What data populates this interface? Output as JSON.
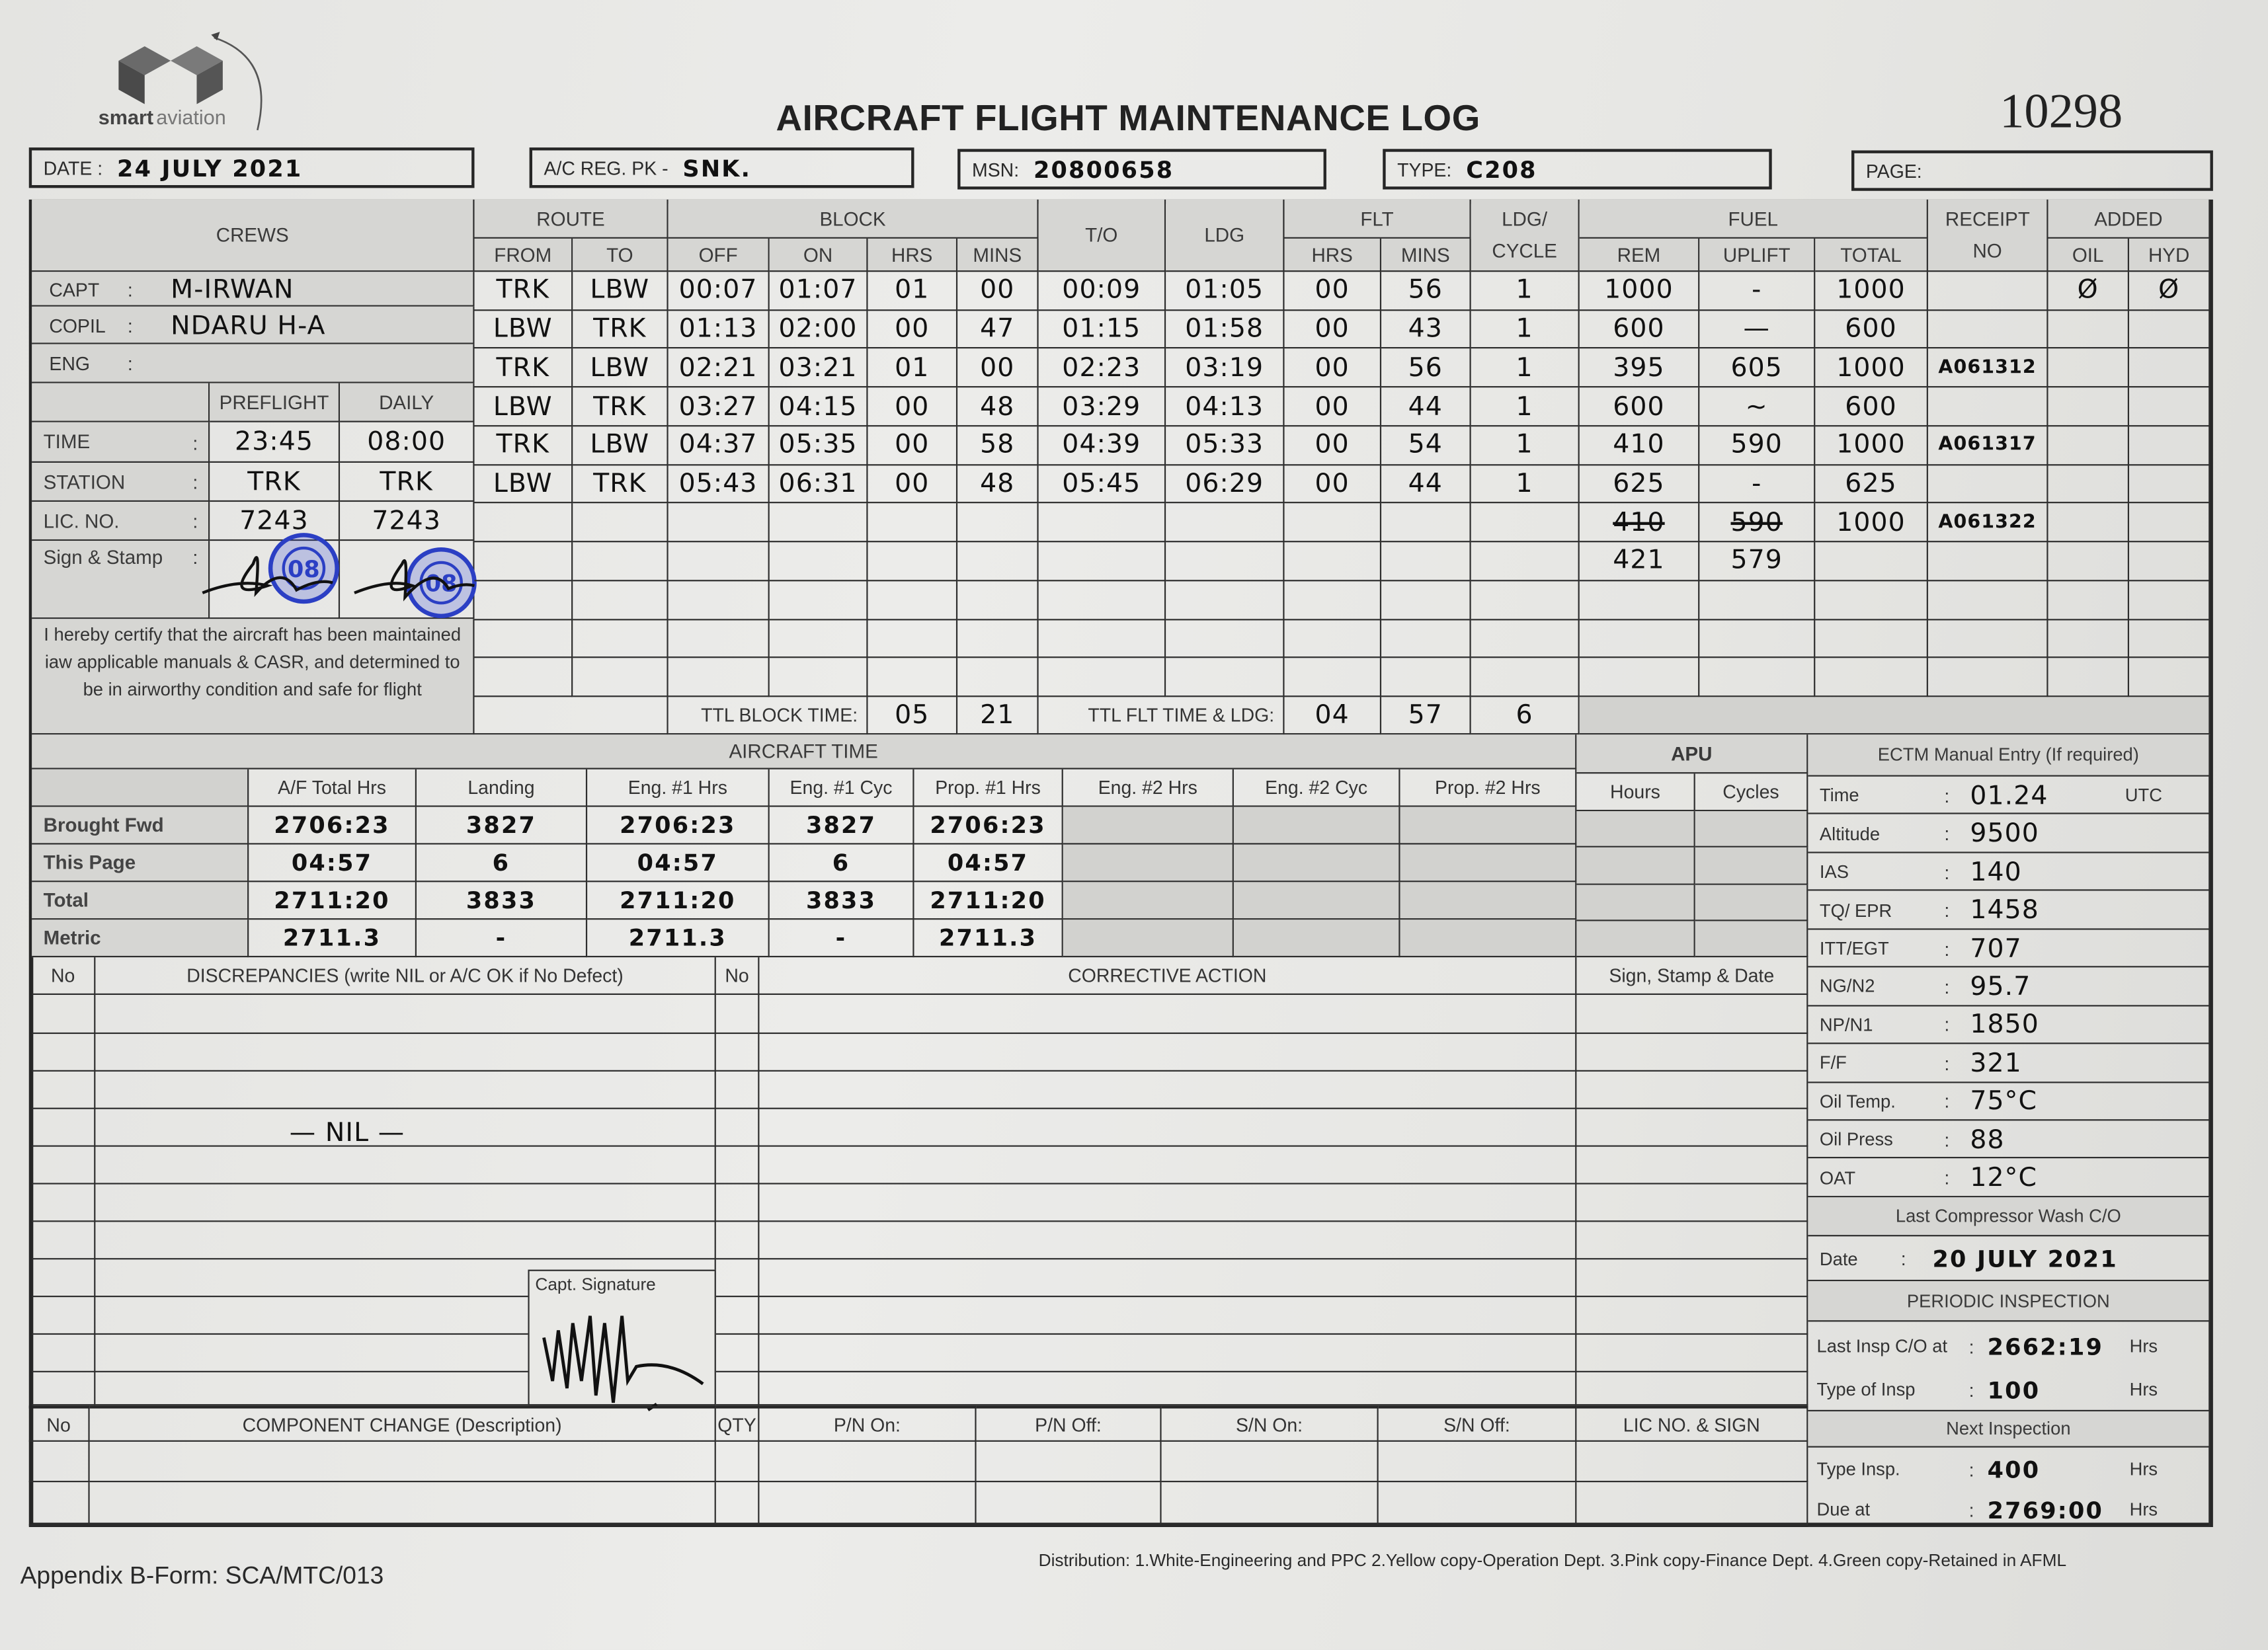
{
  "header": {
    "logo_text_a": "smart",
    "logo_text_b": "aviation",
    "title": "AIRCRAFT FLIGHT MAINTENANCE LOG",
    "log_number": "10298",
    "date_label": "DATE :",
    "date_value": "24 JULY 2021",
    "reg_label": "A/C REG. PK -",
    "reg_value": "SNK.",
    "msn_label": "MSN:",
    "msn_value": "20800658",
    "type_label": "TYPE:",
    "type_value": "C208",
    "page_label": "PAGE:",
    "page_value": ""
  },
  "crews": {
    "title": "CREWS",
    "members": [
      {
        "label": "CAPT",
        "colon": ":",
        "value": "M-IRWAN"
      },
      {
        "label": "COPIL",
        "colon": ":",
        "value": "NDARU   H-A"
      },
      {
        "label": "ENG",
        "colon": ":",
        "value": ""
      }
    ],
    "col_preflight": "PREFLIGHT",
    "col_daily": "DAILY",
    "checks": [
      {
        "label": "TIME",
        "colon": ":",
        "preflight": "23:45",
        "daily": "08:00"
      },
      {
        "label": "STATION",
        "colon": ":",
        "preflight": "TRK",
        "daily": "TRK"
      },
      {
        "label": "LIC. NO.",
        "colon": ":",
        "preflight": "7243",
        "daily": "7243"
      },
      {
        "label": "Sign & Stamp",
        "colon": ":",
        "preflight": "",
        "daily": ""
      }
    ],
    "stamp_text": "08",
    "certification": "I hereby certify that the aircraft has been maintained iaw applicable manuals & CASR, and determined to be in airworthy condition and safe for flight"
  },
  "flights": {
    "headers": {
      "route": "ROUTE",
      "from": "FROM",
      "to": "TO",
      "block": "BLOCK",
      "off": "OFF",
      "on": "ON",
      "hrs": "HRS",
      "mins": "MINS",
      "takeoff": "T/O",
      "ldg": "LDG",
      "flt": "FLT",
      "flt_hrs": "HRS",
      "flt_mins": "MINS",
      "ldg_cycle": "LDG/ CYCLE",
      "fuel": "FUEL",
      "rem": "REM",
      "uplift": "UPLIFT",
      "total": "TOTAL",
      "receipt": "RECEIPT NO",
      "added": "ADDED",
      "oil": "OIL",
      "hyd": "HYD"
    },
    "rows": [
      {
        "from": "TRK",
        "to": "LBW",
        "off": "00:07",
        "on": "01:07",
        "blk_hrs": "01",
        "blk_mins": "00",
        "to_time": "00:09",
        "ldg_time": "01:05",
        "flt_hrs": "00",
        "flt_mins": "56",
        "cycle": "1",
        "rem": "1000",
        "uplift": "-",
        "total": "1000",
        "receipt": "",
        "oil": "Ø",
        "hyd": "Ø"
      },
      {
        "from": "LBW",
        "to": "TRK",
        "off": "01:13",
        "on": "02:00",
        "blk_hrs": "00",
        "blk_mins": "47",
        "to_time": "01:15",
        "ldg_time": "01:58",
        "flt_hrs": "00",
        "flt_mins": "43",
        "cycle": "1",
        "rem": "600",
        "uplift": "—",
        "total": "600",
        "receipt": "",
        "oil": "",
        "hyd": ""
      },
      {
        "from": "TRK",
        "to": "LBW",
        "off": "02:21",
        "on": "03:21",
        "blk_hrs": "01",
        "blk_mins": "00",
        "to_time": "02:23",
        "ldg_time": "03:19",
        "flt_hrs": "00",
        "flt_mins": "56",
        "cycle": "1",
        "rem": "395",
        "uplift": "605",
        "total": "1000",
        "receipt": "A061312",
        "oil": "",
        "hyd": ""
      },
      {
        "from": "LBW",
        "to": "TRK",
        "off": "03:27",
        "on": "04:15",
        "blk_hrs": "00",
        "blk_mins": "48",
        "to_time": "03:29",
        "ldg_time": "04:13",
        "flt_hrs": "00",
        "flt_mins": "44",
        "cycle": "1",
        "rem": "600",
        "uplift": "~",
        "total": "600",
        "receipt": "",
        "oil": "",
        "hyd": ""
      },
      {
        "from": "TRK",
        "to": "LBW",
        "off": "04:37",
        "on": "05:35",
        "blk_hrs": "00",
        "blk_mins": "58",
        "to_time": "04:39",
        "ldg_time": "05:33",
        "flt_hrs": "00",
        "flt_mins": "54",
        "cycle": "1",
        "rem": "410",
        "uplift": "590",
        "total": "1000",
        "receipt": "A061317",
        "oil": "",
        "hyd": ""
      },
      {
        "from": "LBW",
        "to": "TRK",
        "off": "05:43",
        "on": "06:31",
        "blk_hrs": "00",
        "blk_mins": "48",
        "to_time": "05:45",
        "ldg_time": "06:29",
        "flt_hrs": "00",
        "flt_mins": "44",
        "cycle": "1",
        "rem": "625",
        "uplift": "-",
        "total": "625",
        "receipt": "",
        "oil": "",
        "hyd": ""
      },
      {
        "rem": "410",
        "uplift": "590",
        "total": "1000",
        "receipt": "A061322",
        "struck": [
          "rem",
          "uplift"
        ]
      },
      {
        "rem": "421",
        "uplift": "579"
      },
      {},
      {},
      {}
    ],
    "totals": {
      "ttl_block_label": "TTL BLOCK TIME:",
      "block_hrs": "05",
      "block_mins": "21",
      "ttl_flt_label": "TTL FLT TIME & LDG:",
      "flt_hrs": "04",
      "flt_mins": "57",
      "landings": "6"
    }
  },
  "aircraft_time": {
    "title": "AIRCRAFT TIME",
    "columns": [
      "A/F Total Hrs",
      "Landing",
      "Eng. #1 Hrs",
      "Eng. #1 Cyc",
      "Prop. #1 Hrs",
      "Eng. #2 Hrs",
      "Eng. #2 Cyc",
      "Prop. #2 Hrs"
    ],
    "rows": [
      {
        "label": "Brought Fwd",
        "values": [
          "2706:23",
          "3827",
          "2706:23",
          "3827",
          "2706:23",
          "",
          "",
          ""
        ]
      },
      {
        "label": "This Page",
        "values": [
          "04:57",
          "6",
          "04:57",
          "6",
          "04:57",
          "",
          "",
          ""
        ]
      },
      {
        "label": "Total",
        "values": [
          "2711:20",
          "3833",
          "2711:20",
          "3833",
          "2711:20",
          "",
          "",
          ""
        ]
      },
      {
        "label": "Metric",
        "values": [
          "2711.3",
          "-",
          "2711.3",
          "-",
          "2711.3",
          "",
          "",
          ""
        ]
      }
    ]
  },
  "apu": {
    "title": "APU",
    "columns": [
      "Hours",
      "Cycles"
    ]
  },
  "ectm": {
    "title": "ECTM Manual Entry (If required)",
    "rows": [
      {
        "label": "Time",
        "value": "01.24",
        "suffix": "UTC"
      },
      {
        "label": "Altitude",
        "value": "9500",
        "suffix": ""
      },
      {
        "label": "IAS",
        "value": "140",
        "suffix": ""
      },
      {
        "label": "TQ/ EPR",
        "value": "1458",
        "suffix": ""
      },
      {
        "label": "ITT/EGT",
        "value": "707",
        "suffix": ""
      },
      {
        "label": "NG/N2",
        "value": "95.7",
        "suffix": ""
      },
      {
        "label": "NP/N1",
        "value": "1850",
        "suffix": ""
      },
      {
        "label": "F/F",
        "value": "321",
        "suffix": ""
      },
      {
        "label": "Oil Temp.",
        "value": "75°C",
        "suffix": ""
      },
      {
        "label": "Oil Press",
        "value": "88",
        "suffix": ""
      },
      {
        "label": "OAT",
        "value": "12°C",
        "suffix": ""
      }
    ],
    "colon": ":",
    "compressor_wash_title": "Last Compressor Wash C/O",
    "compressor_wash_label": "Date",
    "compressor_wash_date": "20 JULY 2021",
    "periodic_title": "PERIODIC INSPECTION",
    "last_insp_label": "Last Insp C/O at",
    "last_insp_value": "2662:19",
    "type_of_insp_label": "Type of Insp",
    "type_of_insp_value": "100",
    "next_title": "Next Inspection",
    "next_type_label": "Type Insp.",
    "next_type_value": "400",
    "due_label": "Due at",
    "due_value": "2769:00",
    "hrs_unit": "Hrs"
  },
  "discrepancies": {
    "no_label": "No",
    "title": "DISCREPANCIES (write NIL or A/C OK if No Defect)",
    "corr_no_label": "No",
    "corrective_title": "CORRECTIVE ACTION",
    "sign_title": "Sign, Stamp & Date",
    "entry": "—   NIL   —",
    "capt_signature_label": "Capt. Signature"
  },
  "component_change": {
    "no_label": "No",
    "title": "COMPONENT CHANGE (Description)",
    "qty": "QTY",
    "pn_on": "P/N On:",
    "pn_off": "P/N Off:",
    "sn_on": "S/N On:",
    "sn_off": "S/N Off:",
    "lic": "LIC NO. & SIGN"
  },
  "footer": {
    "form_id": "Appendix B-Form: SCA/MTC/013",
    "distribution": "Distribution: 1.White-Engineering and PPC  2.Yellow copy-Operation Dept.  3.Pink copy-Finance Dept.  4.Green copy-Retained in AFML"
  },
  "colors": {
    "ink": "#111111",
    "stamp": "#2b3fc4",
    "paper": "#e8e8e5",
    "header_fill": "#d6d6d3"
  }
}
